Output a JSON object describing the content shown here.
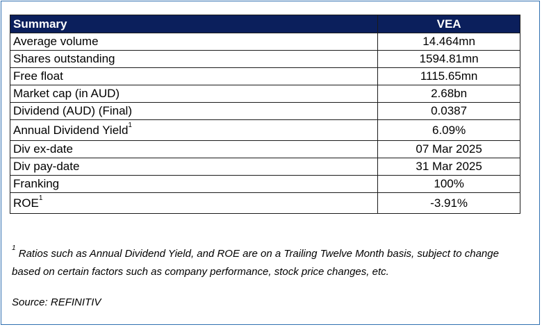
{
  "table": {
    "header": {
      "label": "Summary",
      "value": "VEA"
    },
    "rows": [
      {
        "label": "Average volume",
        "sup": "",
        "value": "14.464mn"
      },
      {
        "label": "Shares outstanding",
        "sup": "",
        "value": "1594.81mn"
      },
      {
        "label": "Free float",
        "sup": "",
        "value": "1115.65mn"
      },
      {
        "label": "Market cap (in AUD)",
        "sup": "",
        "value": "2.68bn"
      },
      {
        "label": "Dividend (AUD) (Final)",
        "sup": "",
        "value": "0.0387"
      },
      {
        "label": "Annual Dividend Yield",
        "sup": "1",
        "value": "6.09%"
      },
      {
        "label": "Div ex-date",
        "sup": "",
        "value": "07 Mar 2025"
      },
      {
        "label": "Div pay-date",
        "sup": "",
        "value": "31 Mar 2025"
      },
      {
        "label": "Franking",
        "sup": "",
        "value": "100%"
      },
      {
        "label": "ROE",
        "sup": "1",
        "value": "-3.91%"
      }
    ]
  },
  "footnote": {
    "marker": "1",
    "text": "Ratios such as Annual Dividend Yield, and ROE are on a Trailing Twelve Month basis, subject to change based on certain factors such as company performance, stock price changes, etc."
  },
  "source": "Source: REFINITIV"
}
